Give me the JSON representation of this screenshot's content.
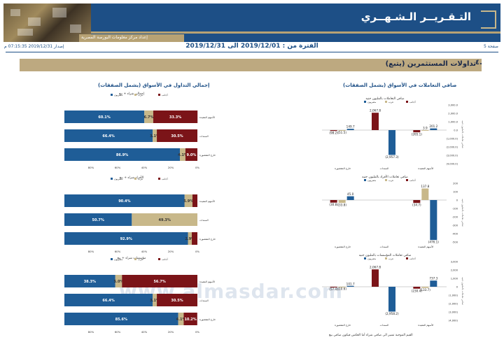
{
  "header": {
    "title": "التـقـريــر الـشـهــري",
    "subtitle": "إعداد مركز معلومات البورصة المصرية"
  },
  "meta": {
    "page": "صفحة 5",
    "period": "الفترة من : 2019/12/01 الى 2019/12/31",
    "issued": "إصدار 2019/12/31 07:15:35 م"
  },
  "section": {
    "number": "٤.",
    "title": "تداولات المستثمرين (يتبع)"
  },
  "headings": {
    "right": "صافي التعاملات في الأسواق (يشمل الصفقات)",
    "left": "إجمالي التداول في الأسواق (يشمل الصفقات)"
  },
  "watermark": "www.almasdar.com",
  "footnote": "القيم الموجبة تشير الى صافي شراء أما العكس فيكون صافي بيع",
  "colors": {
    "blue": "#1f5d97",
    "tan": "#c8b88a",
    "maroon": "#7b1418",
    "navy": "#1d4f86"
  },
  "chart_data": [
    {
      "type": "bar",
      "orientation": "horizontal-stacked",
      "title": "إجمالي شراء + بيع",
      "legend": [
        "مصريون",
        "عرب",
        "أجانب"
      ],
      "categories": [
        "الأسهم المقيدة",
        "السندات",
        "خارج المقصورة"
      ],
      "series": [
        {
          "name": "مصريون",
          "values": [
            60.1,
            66.4,
            86.9
          ]
        },
        {
          "name": "عرب",
          "values": [
            6.7,
            3.1,
            4.1
          ]
        },
        {
          "name": "أجانب",
          "values": [
            33.3,
            30.5,
            9.0
          ]
        }
      ],
      "labels": [
        [
          "60.1%",
          "6.7%",
          "33.3%"
        ],
        [
          "66.4%",
          "3.1%",
          "30.5%"
        ],
        [
          "86.9%",
          "4.1%",
          "9.0%"
        ]
      ],
      "ticks": [
        "80%",
        "60%",
        "40%",
        "20%",
        "0%"
      ]
    },
    {
      "type": "bar",
      "orientation": "horizontal-stacked",
      "title": "الأفراد شراء + بيع",
      "legend": [
        "مصريون",
        "عرب",
        "أجانب"
      ],
      "categories": [
        "الأسهم المقيدة",
        "السندات",
        "خارج المقصورة"
      ],
      "series": [
        {
          "name": "مصريون",
          "values": [
            90.4,
            50.7,
            92.9
          ]
        },
        {
          "name": "عرب",
          "values": [
            5.9,
            49.3,
            2.9
          ]
        },
        {
          "name": "أجانب",
          "values": [
            3.7,
            0,
            4.2
          ]
        }
      ],
      "labels": [
        [
          "90.4%",
          "5.9%",
          ""
        ],
        [
          "50.7%",
          "49.3%",
          ""
        ],
        [
          "92.9%",
          "2.9%",
          ""
        ]
      ],
      "ticks": [
        "80%",
        "60%",
        "40%",
        "20%",
        "0%"
      ]
    },
    {
      "type": "bar",
      "orientation": "horizontal-stacked",
      "title": "مؤسسات شراء + بيع",
      "legend": [
        "مصريون",
        "عرب",
        "أجانب"
      ],
      "categories": [
        "الأسهم المقيدة",
        "السندات",
        "خارج المقصورة"
      ],
      "series": [
        {
          "name": "مصريون",
          "values": [
            38.3,
            66.4,
            85.6
          ]
        },
        {
          "name": "عرب",
          "values": [
            5.0,
            3.1,
            4.1
          ]
        },
        {
          "name": "أجانب",
          "values": [
            56.7,
            30.5,
            10.2
          ]
        }
      ],
      "labels": [
        [
          "38.3%",
          "5.0%",
          "56.7%"
        ],
        [
          "66.4%",
          "3.1%",
          "30.5%"
        ],
        [
          "85.6%",
          "4.1%",
          "10.2%"
        ]
      ],
      "ticks": [
        "80%",
        "60%",
        "40%",
        "20%",
        "0%"
      ]
    },
    {
      "type": "bar",
      "title": "صافي التعاملات بالمليون جنيه",
      "legend": [
        "مصريون",
        "عرب",
        "أجانب"
      ],
      "ylabel": "صافي تعاملات بالمليون جنيه",
      "categories": [
        "خارج المقصورة",
        "السندات",
        "الأسهم المقيدة"
      ],
      "series": [
        {
          "name": "أجانب",
          "values": [
            -98.2,
            2067.8,
            -265.1
          ]
        },
        {
          "name": "عرب",
          "values": [
            -51.5,
            0,
            3.9
          ]
        },
        {
          "name": "مصريون",
          "values": [
            149.7,
            -2957.3,
            201.2
          ]
        }
      ],
      "labels": [
        "(98.2)",
        "(51.5)",
        "149.7",
        "2,067.8",
        "(2,957.3)",
        "(265.1)",
        "3.9",
        "201.2"
      ],
      "ticks": [
        "3,000.0",
        "2,000.0",
        "1,000.0",
        "0.0",
        "(1,000.0)",
        "(2,000.0)",
        "(3,000.0)",
        "(4,000.0)"
      ],
      "ylim": [
        -4000,
        3000
      ]
    },
    {
      "type": "bar",
      "title": "صافي تعاملات الأفراد بالمليون جنيه",
      "legend": [
        "مصريون",
        "عرب",
        "أجانب"
      ],
      "ylabel": "صافي تعاملات بالمليون جنيه",
      "categories": [
        "خارج المقصورة",
        "السندات",
        "الأسهم المقيدة"
      ],
      "series": [
        {
          "name": "أجانب",
          "values": [
            -30.8,
            0,
            -34.7
          ]
        },
        {
          "name": "عرب",
          "values": [
            -33.8,
            0,
            137.8
          ]
        },
        {
          "name": "مصريون",
          "values": [
            45.0,
            0,
            -476.1
          ]
        }
      ],
      "labels": [
        "(30.8)",
        "(33.8)",
        "45.0",
        "(34.7)",
        "137.8",
        "(476.1)"
      ],
      "ticks": [
        "200",
        "100",
        "0",
        "-100",
        "-200",
        "-300",
        "-400",
        "-500"
      ],
      "ylim": [
        -500,
        200
      ]
    },
    {
      "type": "bar",
      "title": "صافي تعاملات المؤسسات بالمليون جنيه",
      "legend": [
        "مصريون",
        "عرب",
        "أجانب"
      ],
      "ylabel": "صافي تعاملات بالمليون جنيه",
      "categories": [
        "خارج المقصورة",
        "السندات",
        "الأسهم المقيدة"
      ],
      "series": [
        {
          "name": "أجانب",
          "values": [
            -57.4,
            2067.8,
            -230.4
          ]
        },
        {
          "name": "عرب",
          "values": [
            -10.6,
            0,
            -133.7
          ]
        },
        {
          "name": "مصريون",
          "values": [
            101.7,
            -2958.2,
            737.3
          ]
        }
      ],
      "labels": [
        "(57.4)",
        "(10.6)",
        "101.7",
        "2,067.8",
        "(2,958.2)",
        "(230.4)",
        "(133.7)",
        "737.3"
      ],
      "ticks": [
        "3,000",
        "2,000",
        "1,000",
        "0",
        "(1,000)",
        "(2,000)",
        "(3,000)",
        "(4,000)"
      ],
      "ylim": [
        -4000,
        3000
      ]
    }
  ]
}
